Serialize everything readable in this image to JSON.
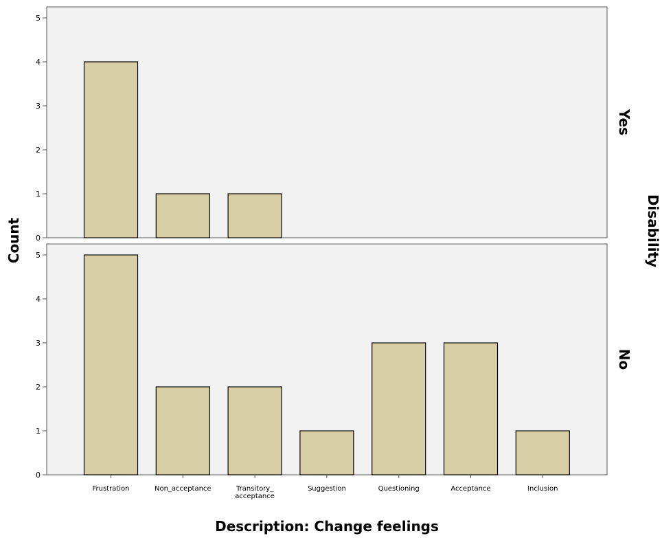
{
  "chart_data": {
    "type": "bar",
    "xlabel": "Description: Change feelings",
    "ylabel": "Count",
    "facet_title": "Disability",
    "categories": [
      "Frustration",
      "Non_acceptance",
      "Transitory_\nacceptance",
      "Suggestion",
      "Questioning",
      "Acceptance",
      "Inclusion"
    ],
    "ylim": [
      0,
      5
    ],
    "yticks": [
      "0",
      "1",
      "2",
      "3",
      "4",
      "5"
    ],
    "grid": false,
    "panels": [
      {
        "name": "Yes",
        "values": [
          4,
          1,
          1,
          0,
          0,
          0,
          0
        ]
      },
      {
        "name": "No",
        "values": [
          5,
          2,
          2,
          1,
          3,
          3,
          1
        ]
      }
    ],
    "colors": {
      "bar_fill": "#d8cfa6",
      "bar_stroke": "#000000",
      "panel_bg": "#f2f2f2",
      "axis": "#555555"
    }
  }
}
